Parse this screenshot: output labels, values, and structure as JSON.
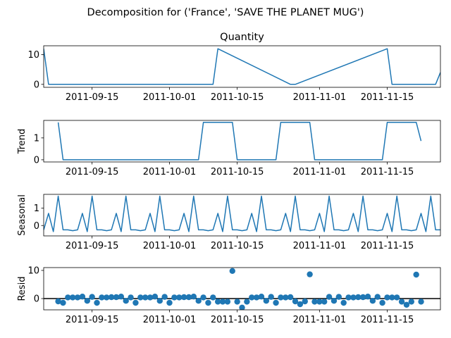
{
  "figure": {
    "suptitle": "Decomposition for ('France', 'SAVE THE PLANET MUG')",
    "colors": {
      "line": "#1f77b4",
      "marker": "#1f77b4",
      "axis": "#000000",
      "background": "#ffffff"
    }
  },
  "chart_data": [
    {
      "type": "line",
      "title": "Quantity",
      "ylabel": "",
      "x_start": "2011-09-05",
      "x_end": "2011-11-26",
      "ylim": [
        -1,
        13
      ],
      "yticks": [
        0,
        10
      ],
      "xticks": [
        "2011-09-15",
        "2011-10-01",
        "2011-10-15",
        "2011-11-01",
        "2011-11-15"
      ],
      "grid": false,
      "series": [
        {
          "x": [
            "2011-09-05",
            "2011-09-06",
            "2011-10-10",
            "2011-10-11",
            "2011-10-26",
            "2011-10-27",
            "2011-11-15",
            "2011-11-16",
            "2011-11-25",
            "2011-11-26"
          ],
          "y": [
            12,
            0,
            0,
            12,
            0,
            0,
            12,
            0,
            0,
            4
          ]
        }
      ]
    },
    {
      "type": "line",
      "title": "",
      "ylabel": "Trend",
      "x_start": "2011-09-05",
      "x_end": "2011-11-26",
      "ylim": [
        -0.1,
        1.8
      ],
      "yticks": [
        0,
        1
      ],
      "xticks": [
        "2011-09-15",
        "2011-10-01",
        "2011-10-15",
        "2011-11-01",
        "2011-11-15"
      ],
      "grid": false,
      "series": [
        {
          "x": [
            "2011-09-08",
            "2011-09-09",
            "2011-10-07",
            "2011-10-08",
            "2011-10-14",
            "2011-10-15",
            "2011-10-23",
            "2011-10-24",
            "2011-10-30",
            "2011-10-31",
            "2011-11-14",
            "2011-11-15",
            "2011-11-21",
            "2011-11-22"
          ],
          "y": [
            1.71,
            0,
            0,
            1.71,
            1.71,
            0,
            0,
            1.71,
            1.71,
            0,
            0,
            1.71,
            1.71,
            0.86
          ]
        }
      ]
    },
    {
      "type": "line",
      "title": "",
      "ylabel": "Seasonal",
      "x_start": "2011-09-05",
      "x_end": "2011-11-26",
      "ylim": [
        -0.6,
        1.8
      ],
      "yticks": [
        0,
        1
      ],
      "xticks": [
        "2011-09-15",
        "2011-10-01",
        "2011-10-15",
        "2011-11-01",
        "2011-11-15"
      ],
      "grid": false,
      "pattern": [
        -0.25,
        0.7,
        -0.35,
        1.7,
        -0.25,
        -0.25,
        -0.3
      ],
      "series": [
        {
          "x": [
            "2011-09-05",
            "2011-11-26"
          ],
          "y": [
            -0.2,
            1.7
          ]
        }
      ]
    },
    {
      "type": "scatter",
      "title": "",
      "ylabel": "Resid",
      "x_start": "2011-09-05",
      "x_end": "2011-11-26",
      "ylim": [
        -4,
        11
      ],
      "yticks": [
        0,
        10
      ],
      "xticks": [
        "2011-09-15",
        "2011-10-01",
        "2011-10-15",
        "2011-11-01",
        "2011-11-15"
      ],
      "grid": false,
      "baseline": 0,
      "series": [
        {
          "x": [
            "2011-09-08",
            "2011-09-09",
            "2011-09-10",
            "2011-09-11",
            "2011-09-12",
            "2011-09-13",
            "2011-09-14",
            "2011-09-15",
            "2011-09-16",
            "2011-09-17",
            "2011-09-18",
            "2011-09-19",
            "2011-09-20",
            "2011-09-21",
            "2011-09-22",
            "2011-09-23",
            "2011-09-24",
            "2011-09-25",
            "2011-09-26",
            "2011-09-27",
            "2011-09-28",
            "2011-09-29",
            "2011-09-30",
            "2011-10-01",
            "2011-10-02",
            "2011-10-03",
            "2011-10-04",
            "2011-10-05",
            "2011-10-06",
            "2011-10-07",
            "2011-10-08",
            "2011-10-09",
            "2011-10-10",
            "2011-10-11",
            "2011-10-12",
            "2011-10-13",
            "2011-10-14",
            "2011-10-15",
            "2011-10-16",
            "2011-10-17",
            "2011-10-18",
            "2011-10-19",
            "2011-10-20",
            "2011-10-21",
            "2011-10-22",
            "2011-10-23",
            "2011-10-24",
            "2011-10-25",
            "2011-10-26",
            "2011-10-27",
            "2011-10-28",
            "2011-10-29",
            "2011-10-30",
            "2011-10-31",
            "2011-11-01",
            "2011-11-02",
            "2011-11-03",
            "2011-11-04",
            "2011-11-05",
            "2011-11-06",
            "2011-11-07",
            "2011-11-08",
            "2011-11-09",
            "2011-11-10",
            "2011-11-11",
            "2011-11-12",
            "2011-11-13",
            "2011-11-14",
            "2011-11-15",
            "2011-11-16",
            "2011-11-17",
            "2011-11-18",
            "2011-11-19",
            "2011-11-20",
            "2011-11-21",
            "2011-11-22"
          ],
          "y": [
            -1,
            -1.5,
            0.4,
            0.4,
            0.4,
            0.7,
            -0.8,
            0.6,
            -1.5,
            0.4,
            0.4,
            0.5,
            0.5,
            0.7,
            -0.8,
            0.4,
            -1.5,
            0.4,
            0.4,
            0.4,
            0.7,
            -0.8,
            0.6,
            -1.5,
            0.4,
            0.4,
            0.5,
            0.5,
            0.7,
            -0.8,
            0.4,
            -1.5,
            0.4,
            -1.1,
            -1.1,
            -1.1,
            9.8,
            -1.1,
            -3.2,
            -1.1,
            0.4,
            0.4,
            0.7,
            -0.8,
            0.6,
            -1.5,
            0.4,
            0.4,
            0.5,
            -1,
            -2,
            -1,
            8.6,
            -1.1,
            -1.1,
            -1.1,
            0.6,
            -0.8,
            0.6,
            -1.5,
            0.4,
            0.4,
            0.5,
            0.5,
            0.7,
            -0.8,
            0.6,
            -1.5,
            0.4,
            0.4,
            0.4,
            -1.1,
            -2.2,
            -1.1,
            8.5,
            -1.1
          ]
        }
      ]
    }
  ]
}
